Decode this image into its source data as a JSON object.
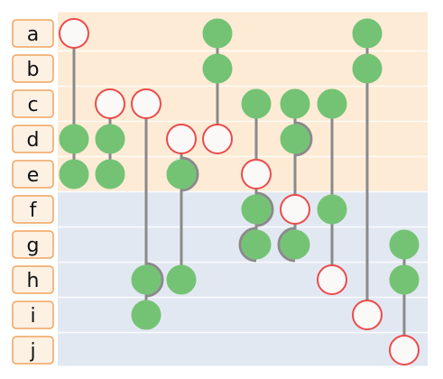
{
  "diagram": {
    "rows": [
      "a",
      "b",
      "c",
      "d",
      "e",
      "f",
      "g",
      "h",
      "i",
      "j"
    ],
    "group_top_rows": [
      "a",
      "b",
      "c",
      "d",
      "e"
    ],
    "group_bottom_rows": [
      "f",
      "g",
      "h",
      "i",
      "j"
    ],
    "node_kinds": {
      "filled": "green filled circle",
      "open": "white circle with red outline"
    },
    "columns": [
      {
        "nodes": [
          {
            "row": "a",
            "kind": "open"
          },
          {
            "row": "d",
            "kind": "filled"
          },
          {
            "row": "e",
            "kind": "filled"
          }
        ]
      },
      {
        "nodes": [
          {
            "row": "c",
            "kind": "open"
          },
          {
            "row": "d",
            "kind": "filled"
          },
          {
            "row": "e",
            "kind": "filled"
          }
        ]
      },
      {
        "nodes": [
          {
            "row": "c",
            "kind": "open"
          },
          {
            "row": "h",
            "kind": "filled"
          },
          {
            "row": "i",
            "kind": "filled"
          }
        ]
      },
      {
        "nodes": [
          {
            "row": "d",
            "kind": "open"
          },
          {
            "row": "e",
            "kind": "filled"
          },
          {
            "row": "h",
            "kind": "filled"
          }
        ]
      },
      {
        "nodes": [
          {
            "row": "a",
            "kind": "filled"
          },
          {
            "row": "b",
            "kind": "filled"
          },
          {
            "row": "d",
            "kind": "open"
          }
        ]
      },
      {
        "nodes": [
          {
            "row": "c",
            "kind": "filled"
          },
          {
            "row": "e",
            "kind": "open"
          },
          {
            "row": "f",
            "kind": "filled"
          },
          {
            "row": "g",
            "kind": "filled"
          }
        ]
      },
      {
        "nodes": [
          {
            "row": "c",
            "kind": "filled"
          },
          {
            "row": "d",
            "kind": "filled"
          },
          {
            "row": "f",
            "kind": "open"
          },
          {
            "row": "g",
            "kind": "filled"
          }
        ]
      },
      {
        "nodes": [
          {
            "row": "c",
            "kind": "filled"
          },
          {
            "row": "f",
            "kind": "filled"
          },
          {
            "row": "h",
            "kind": "open"
          }
        ]
      },
      {
        "nodes": [
          {
            "row": "a",
            "kind": "filled"
          },
          {
            "row": "b",
            "kind": "filled"
          },
          {
            "row": "i",
            "kind": "open"
          }
        ]
      },
      {
        "nodes": [
          {
            "row": "g",
            "kind": "filled"
          },
          {
            "row": "h",
            "kind": "filled"
          },
          {
            "row": "j",
            "kind": "open"
          }
        ]
      }
    ],
    "colors": {
      "top_band": "#fdebd6",
      "bottom_band": "#e2e8f1",
      "label_box_fill": "#fdf1e4",
      "label_box_stroke": "#f0a45e",
      "filled_node": "#74c375",
      "open_node_fill": "#fbf8f8",
      "open_node_stroke": "#ea4b4b",
      "connector": "#8a8a8a"
    }
  }
}
